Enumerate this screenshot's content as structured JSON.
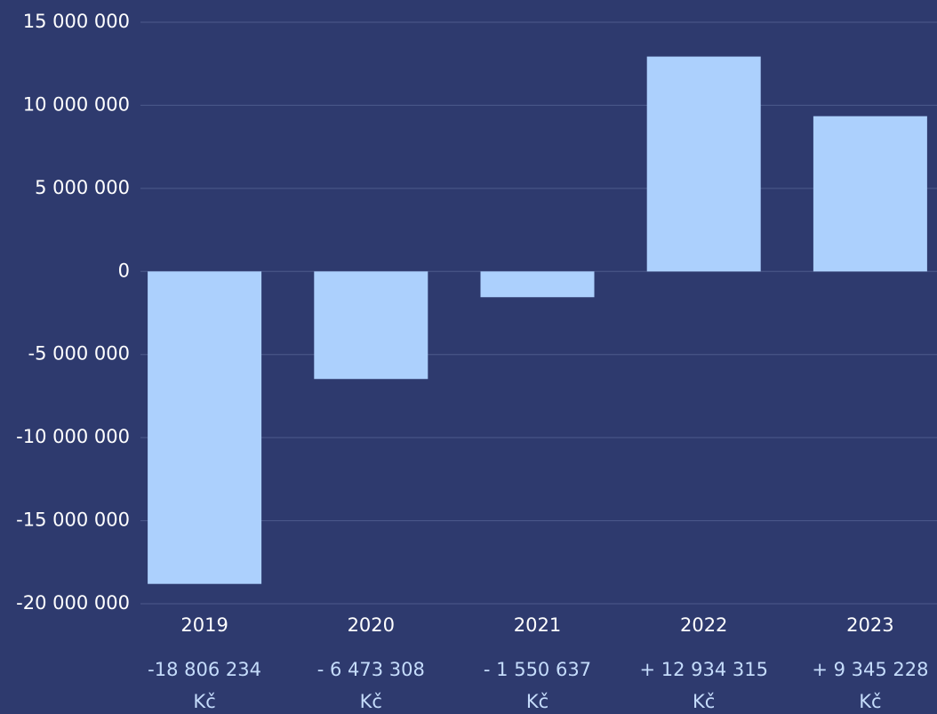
{
  "chart_data": {
    "type": "bar",
    "categories": [
      "2019",
      "2020",
      "2021",
      "2022",
      "2023"
    ],
    "values": [
      -18806234,
      -6473308,
      -1550637,
      12934315,
      9345228
    ],
    "value_labels": [
      "-18 806 234",
      "- 6 473 308",
      "- 1 550 637",
      "+ 12 934 315",
      "+ 9 345 228"
    ],
    "value_label_unit": "Kč",
    "color": "#acd0fd",
    "ylim": [
      -20000000,
      15000000
    ],
    "yticks": [
      {
        "value": -20000000,
        "label": "-20 000 000"
      },
      {
        "value": -15000000,
        "label": "-15 000 000"
      },
      {
        "value": -10000000,
        "label": "-10 000 000"
      },
      {
        "value": -5000000,
        "label": "-5 000 000"
      },
      0,
      {
        "value": 5000000,
        "label": "5 000 000"
      },
      {
        "value": 10000000,
        "label": "10 000 000"
      },
      {
        "value": 15000000,
        "label": "15 000 000"
      }
    ],
    "grid": true
  }
}
